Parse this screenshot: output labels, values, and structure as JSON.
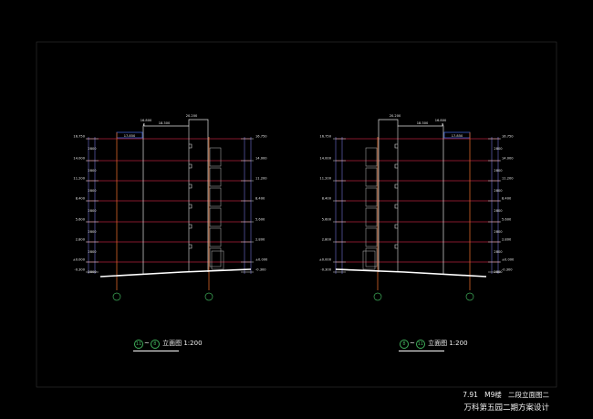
{
  "drawing": {
    "background": "#000000",
    "colors": {
      "floor_line": "#b0203a",
      "outline": "#e0e0e0",
      "axis": "#3fae5a",
      "column": "#d8662a",
      "roof_box": "#3a5fd0"
    },
    "elevation_levels": [
      "16.750",
      "14.000",
      "11.200",
      "8.400",
      "5.600",
      "2.800",
      "±0.000",
      "-0.300"
    ],
    "floor_height": "2800",
    "top_levels": [
      "20.200",
      "18.300",
      "16.800"
    ],
    "roof_tag": "17.850",
    "left_view": {
      "axis_start": "11",
      "axis_end": "8",
      "title": "立面图",
      "scale": "1:200"
    },
    "right_view": {
      "axis_start": "8",
      "axis_end": "11",
      "title": "立面图",
      "scale": "1:200"
    },
    "title_block": {
      "line1_a": "7.91",
      "line1_b": "M9楼",
      "line1_c": "二段立面图二",
      "line2": "万科第五园二期方案设计"
    }
  }
}
